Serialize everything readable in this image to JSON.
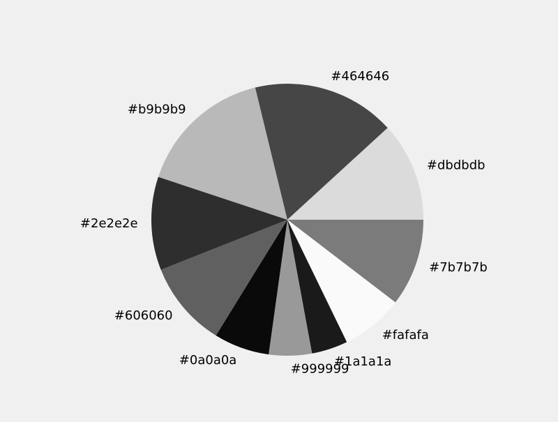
{
  "chart_data": {
    "type": "pie",
    "title": "",
    "start_angle_deg": 0,
    "direction": "clockwise",
    "slices": [
      {
        "label": "#7b7b7b",
        "value": 10.4,
        "color": "#7b7b7b"
      },
      {
        "label": "#fafafa",
        "value": 7.4,
        "color": "#fafafa"
      },
      {
        "label": "#1a1a1a",
        "value": 4.3,
        "color": "#1a1a1a"
      },
      {
        "label": "#999999",
        "value": 5.1,
        "color": "#999999"
      },
      {
        "label": "#0a0a0a",
        "value": 6.6,
        "color": "#0a0a0a"
      },
      {
        "label": "#606060",
        "value": 10.2,
        "color": "#606060"
      },
      {
        "label": "#2e2e2e",
        "value": 11.1,
        "color": "#2e2e2e"
      },
      {
        "label": "#b9b9b9",
        "value": 16.1,
        "color": "#b9b9b9"
      },
      {
        "label": "#464646",
        "value": 17.0,
        "color": "#464646"
      },
      {
        "label": "#dbdbdb",
        "value": 11.8,
        "color": "#dbdbdb"
      }
    ]
  }
}
